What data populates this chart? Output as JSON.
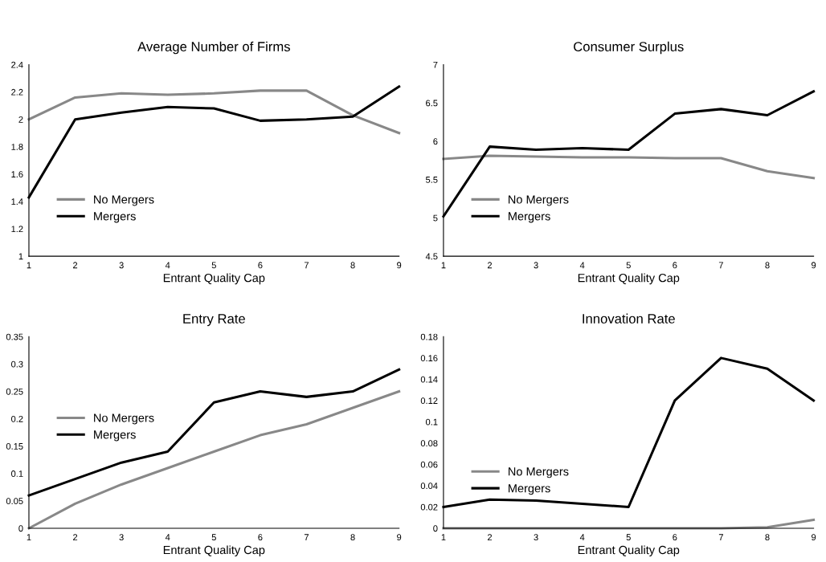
{
  "chart_data": [
    {
      "type": "line",
      "title": "Average Number of Firms",
      "x": [
        1,
        2,
        3,
        4,
        5,
        6,
        7,
        8,
        9
      ],
      "xlim": [
        1,
        9
      ],
      "xticks": [
        1,
        2,
        3,
        4,
        5,
        6,
        7,
        8,
        9
      ],
      "ylim": [
        1,
        2.4
      ],
      "yticks": [
        1,
        1.2,
        1.4,
        1.6,
        1.8,
        2,
        2.2,
        2.4
      ],
      "legend": "bottom left",
      "grid": false,
      "marker": "none",
      "line_style": "solid",
      "series": [
        {
          "name": "No Mergers",
          "color": "#888888",
          "values": [
            2.0,
            2.16,
            2.19,
            2.18,
            2.19,
            2.21,
            2.21,
            2.03,
            1.9
          ]
        },
        {
          "name": "Mergers",
          "color": "#000000",
          "values": [
            1.43,
            2.0,
            2.05,
            2.09,
            2.08,
            1.99,
            2.0,
            2.02,
            2.24
          ]
        }
      ],
      "xlabel": "Entrant Quality Cap"
    },
    {
      "type": "line",
      "title": "Consumer Surplus",
      "x": [
        1,
        2,
        3,
        4,
        5,
        6,
        7,
        8,
        9
      ],
      "xlim": [
        1,
        9
      ],
      "xticks": [
        1,
        2,
        3,
        4,
        5,
        6,
        7,
        8,
        9
      ],
      "ylim": [
        4.5,
        7
      ],
      "yticks": [
        4.5,
        5,
        5.5,
        6,
        6.5,
        7
      ],
      "legend": "bottom left",
      "grid": false,
      "marker": "none",
      "line_style": "solid",
      "series": [
        {
          "name": "No Mergers",
          "color": "#888888",
          "values": [
            5.77,
            5.81,
            5.8,
            5.79,
            5.79,
            5.78,
            5.78,
            5.61,
            5.52
          ]
        },
        {
          "name": "Mergers",
          "color": "#000000",
          "values": [
            5.02,
            5.93,
            5.89,
            5.91,
            5.89,
            6.36,
            6.42,
            6.34,
            6.65
          ]
        }
      ],
      "xlabel": "Entrant Quality Cap"
    },
    {
      "type": "line",
      "title": "Entry Rate",
      "x": [
        1,
        2,
        3,
        4,
        5,
        6,
        7,
        8,
        9
      ],
      "xlim": [
        1,
        9
      ],
      "xticks": [
        1,
        2,
        3,
        4,
        5,
        6,
        7,
        8,
        9
      ],
      "ylim": [
        0,
        0.35
      ],
      "yticks": [
        0,
        0.05,
        0.1,
        0.15,
        0.2,
        0.25,
        0.3,
        0.35
      ],
      "legend": "left",
      "grid": false,
      "marker": "none",
      "line_style": "solid",
      "series": [
        {
          "name": "No Mergers",
          "color": "#888888",
          "values": [
            0,
            0.045,
            0.08,
            0.11,
            0.14,
            0.17,
            0.19,
            0.22,
            0.25
          ]
        },
        {
          "name": "Mergers",
          "color": "#000000",
          "values": [
            0.06,
            0.09,
            0.12,
            0.14,
            0.23,
            0.25,
            0.24,
            0.25,
            0.29
          ]
        }
      ],
      "xlabel": "Entrant Quality Cap"
    },
    {
      "type": "line",
      "title": "Innovation Rate",
      "x": [
        1,
        2,
        3,
        4,
        5,
        6,
        7,
        8,
        9
      ],
      "xlim": [
        1,
        9
      ],
      "xticks": [
        1,
        2,
        3,
        4,
        5,
        6,
        7,
        8,
        9
      ],
      "ylim": [
        0,
        0.18
      ],
      "yticks": [
        0,
        0.02,
        0.04,
        0.06,
        0.08,
        0.1,
        0.12,
        0.14,
        0.16,
        0.18
      ],
      "legend": "bottom left",
      "grid": false,
      "marker": "none",
      "line_style": "solid",
      "series": [
        {
          "name": "No Mergers",
          "color": "#888888",
          "values": [
            0,
            0,
            0,
            0,
            0,
            0,
            0,
            0.001,
            0.008
          ]
        },
        {
          "name": "Mergers",
          "color": "#000000",
          "values": [
            0.02,
            0.027,
            0.026,
            0.023,
            0.02,
            0.12,
            0.16,
            0.15,
            0.12
          ]
        }
      ],
      "xlabel": "Entrant Quality Cap"
    }
  ]
}
